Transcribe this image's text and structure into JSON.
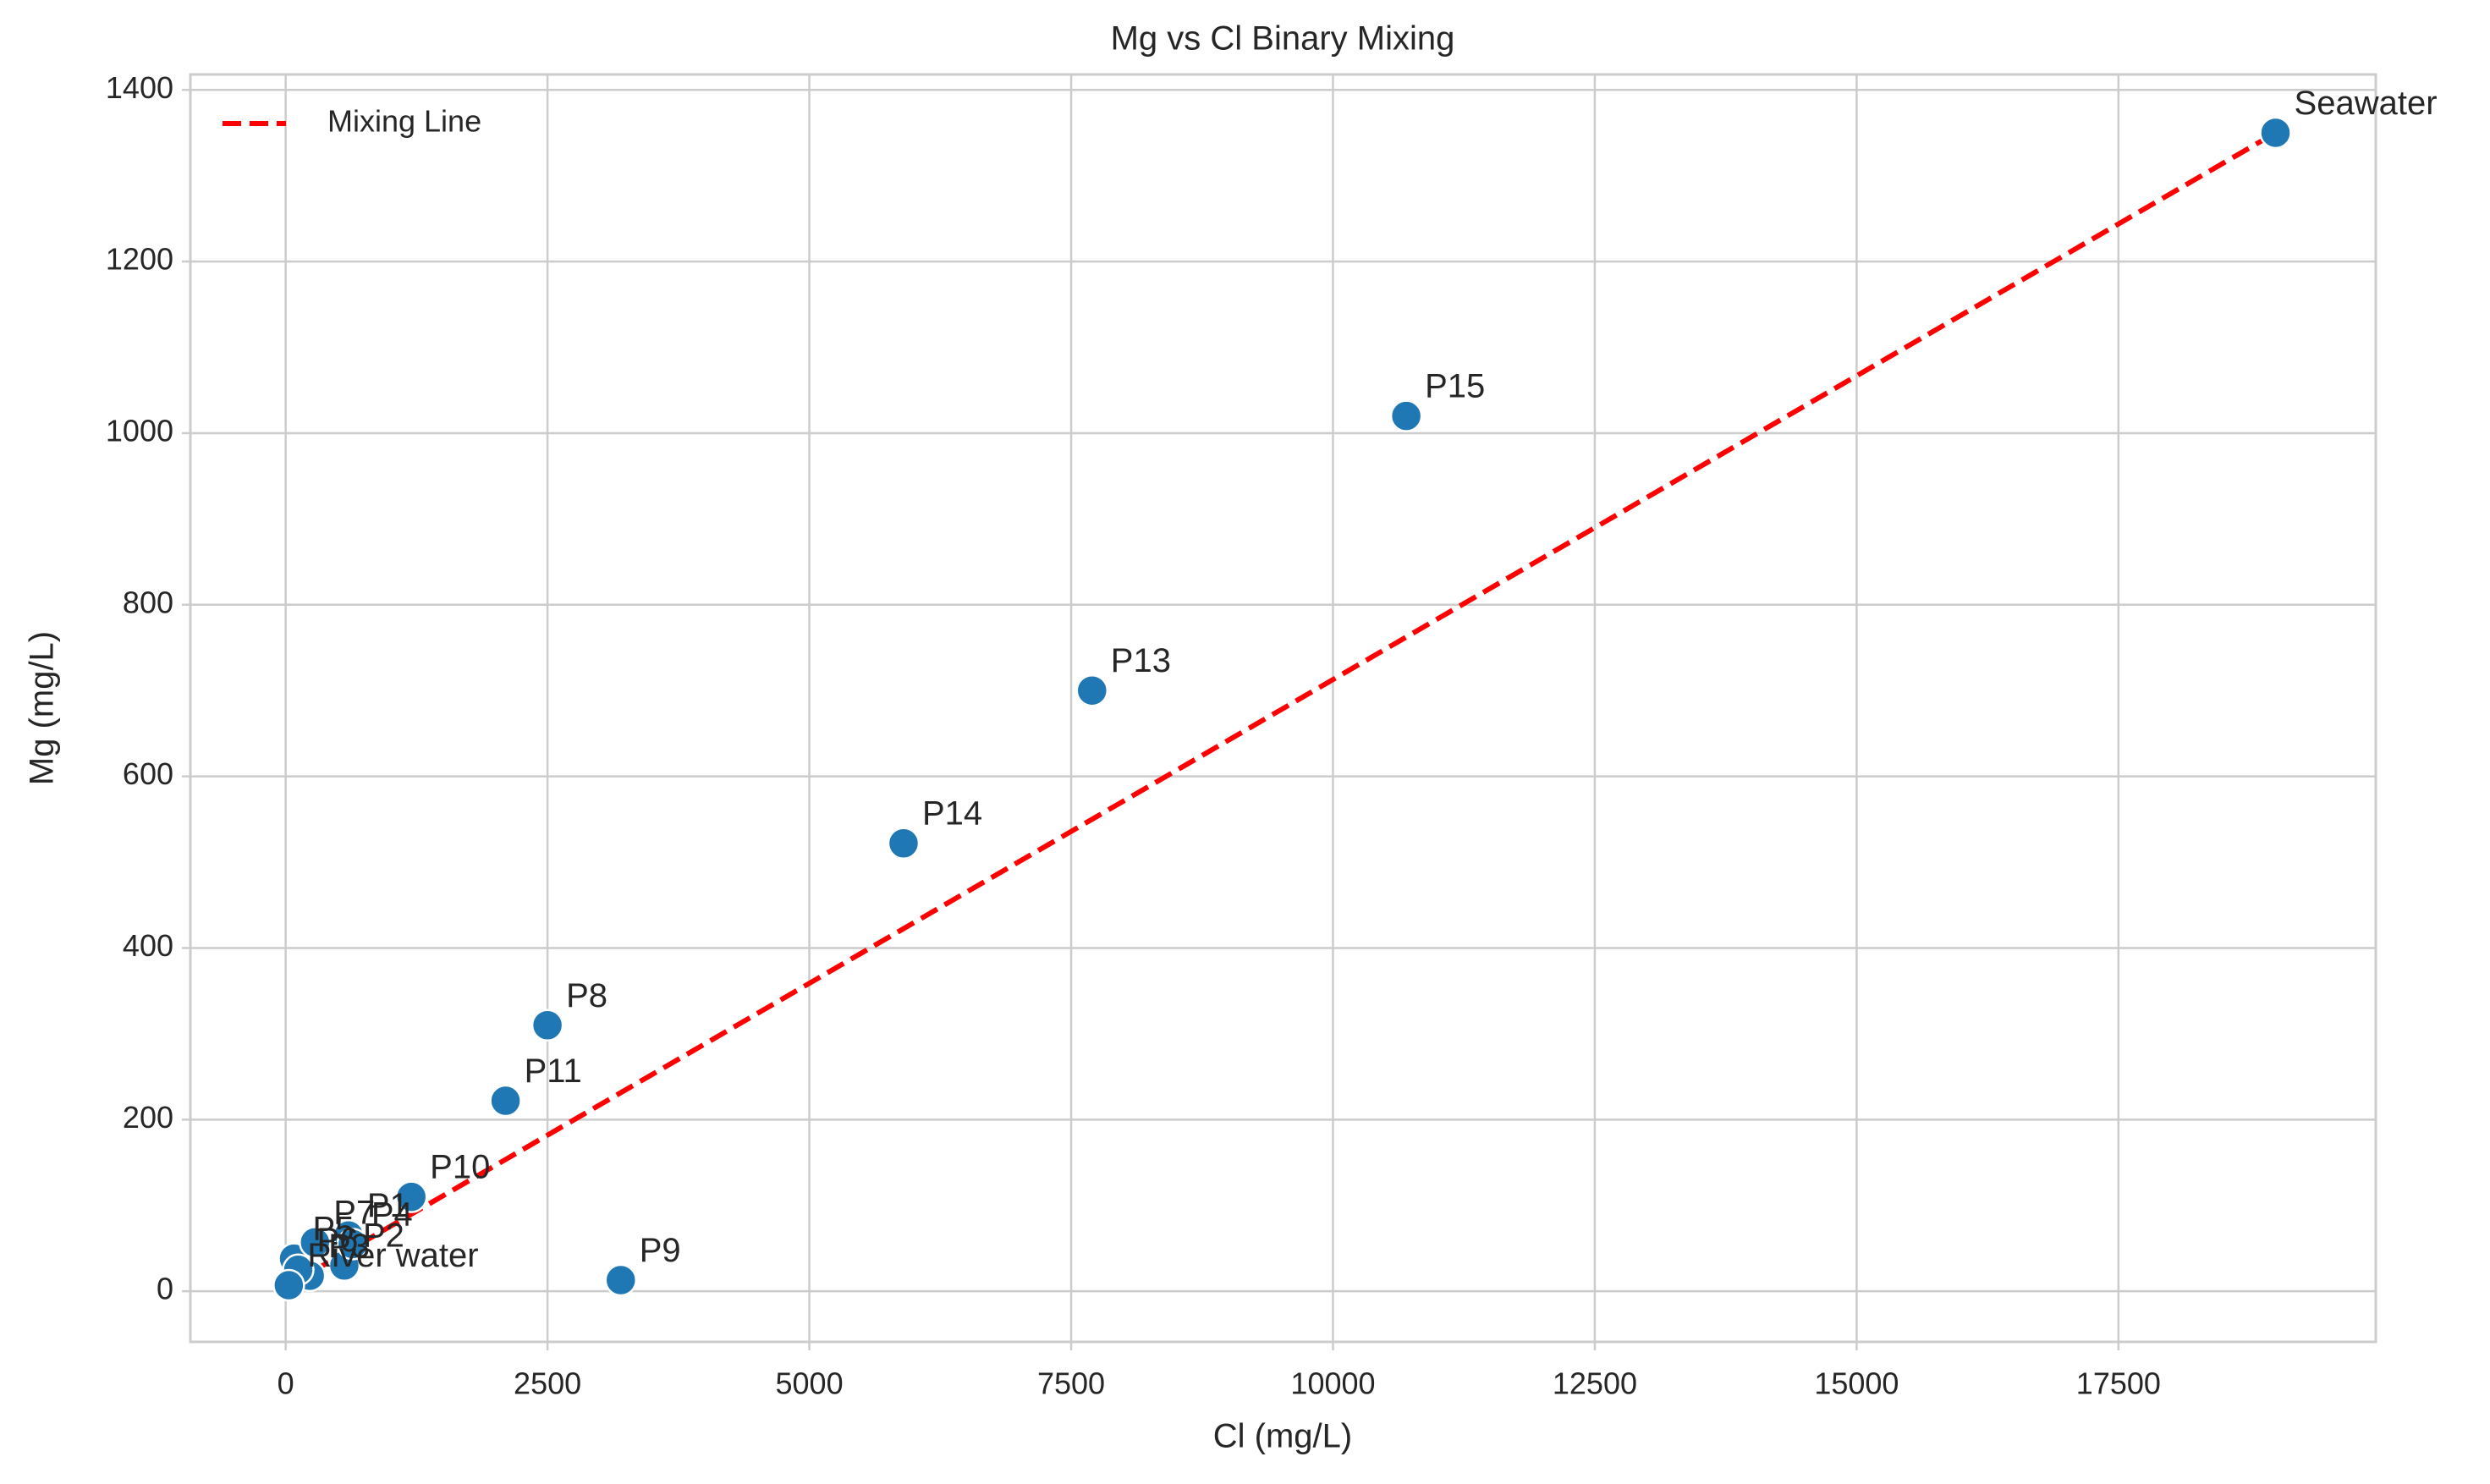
{
  "chart_data": {
    "type": "scatter",
    "title": "Mg vs Cl Binary Mixing",
    "x_label": "Cl (mg/L)",
    "y_label": "Mg (mg/L)",
    "points": {
      "color": "#1f77b4",
      "labels": [
        "P1",
        "P2",
        "P3",
        "P4",
        "P5",
        "P6",
        "P7",
        "P8",
        "P9",
        "P10",
        "P11",
        "P13",
        "P14",
        "P15",
        "River water",
        "Seawater"
      ],
      "x": [
        600,
        560,
        230,
        640,
        80,
        120,
        280,
        2500,
        3200,
        1200,
        2100,
        7700,
        5900,
        10700,
        30,
        19000
      ],
      "y": [
        65,
        30,
        18,
        55,
        38,
        25,
        57,
        310,
        13,
        110,
        222,
        700,
        522,
        1020,
        7,
        1350
      ]
    },
    "series": [
      {
        "name": "Mixing Line",
        "color": "#ff0000",
        "x": [
          30,
          19000
        ],
        "values": [
          7,
          1350
        ]
      }
    ],
    "xlim": [
      -910,
      19957
    ],
    "ylim": [
      -59,
      1418
    ],
    "xticks": [
      0,
      2500,
      5000,
      7500,
      10000,
      12500,
      15000,
      17500
    ],
    "yticks": [
      0,
      200,
      400,
      600,
      800,
      1000,
      1200,
      1400
    ],
    "grid": true,
    "legend": "upper-left"
  }
}
